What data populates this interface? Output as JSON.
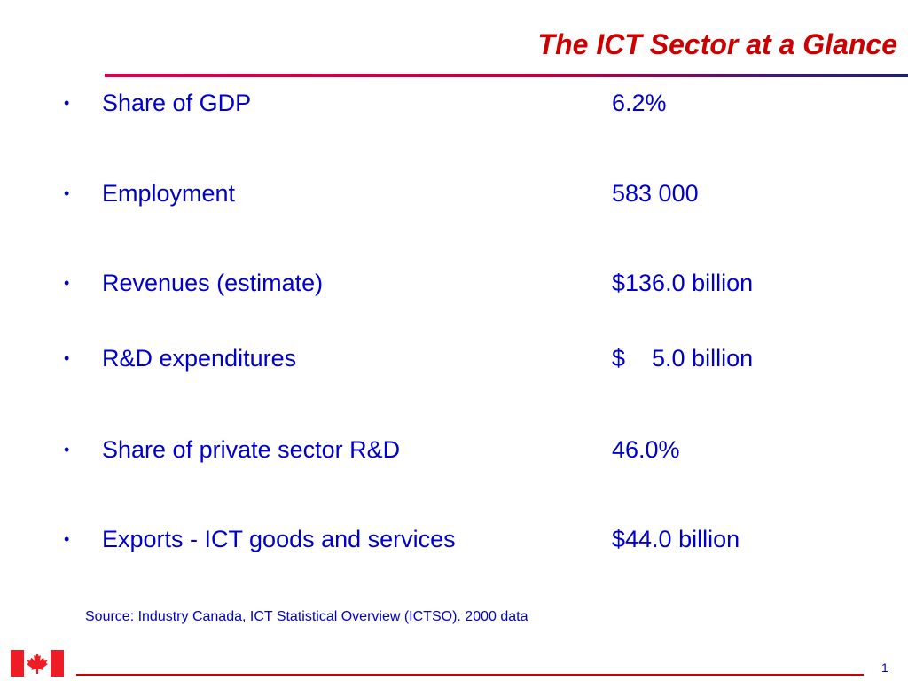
{
  "title": "The ICT Sector at a Glance",
  "items": [
    {
      "label": "Share of GDP",
      "value": "6.2%"
    },
    {
      "label": "Employment",
      "value": "583 000"
    },
    {
      "label": "Revenues (estimate)",
      "value": "$136.0 billion"
    },
    {
      "label": "R&D expenditures",
      "value": "$    5.0 billion"
    },
    {
      "label": "Share of private sector R&D",
      "value": "46.0%"
    },
    {
      "label": "Exports - ICT goods and services",
      "value": "$44.0 billion"
    }
  ],
  "bullet_glyph": "•",
  "source": "Source: Industry Canada, ICT Statistical Overview (ICTSO). 2000 data",
  "page_number": "1",
  "colors": {
    "title": "#cc0000",
    "body_text": "#0000cc",
    "flag_red": "#ee1c25"
  },
  "icons": {
    "flag": "canada-flag-icon"
  }
}
